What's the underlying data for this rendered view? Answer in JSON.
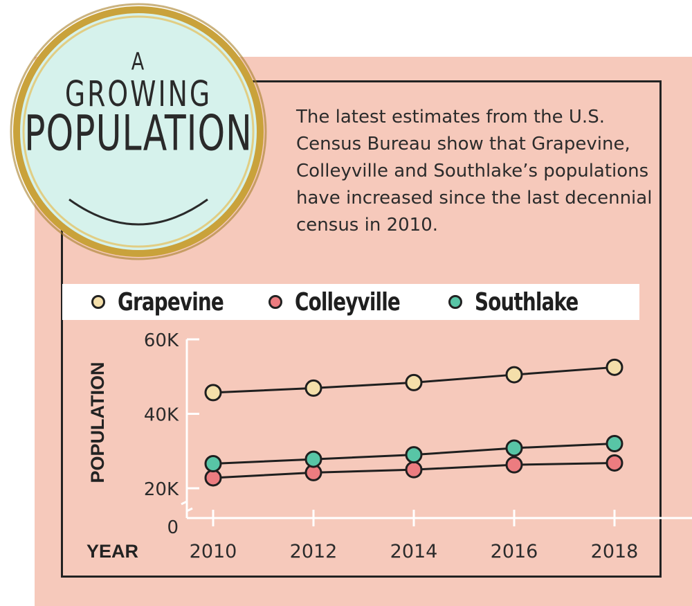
{
  "badge": {
    "line1": "A",
    "line2": "GROWING",
    "line3": "POPULATION"
  },
  "description": "The latest estimates from the U.S. Census Bureau show that Grapevine, Colleyville and Southlake’s populations have increased since the last decennial census in 2010.",
  "colors": {
    "panel": "#f6c9bb",
    "badge_fill": "#d6f2ec",
    "gold": "#c9a23b",
    "grapevine": "#f4dfaa",
    "colleyville": "#ec7c80",
    "southlake": "#58c5a6"
  },
  "chart_data": {
    "type": "line",
    "x": [
      2010,
      2012,
      2014,
      2016,
      2018
    ],
    "series": [
      {
        "name": "Grapevine",
        "values": [
          45700,
          46900,
          48400,
          50500,
          52500
        ]
      },
      {
        "name": "Colleyville",
        "values": [
          22800,
          24200,
          25000,
          26300,
          26800
        ]
      },
      {
        "name": "Southlake",
        "values": [
          26600,
          27800,
          29000,
          30800,
          32000
        ]
      }
    ],
    "xlabel": "YEAR",
    "ylabel": "POPULATION",
    "y_ticks": [
      "0",
      "20K",
      "40K",
      "60K"
    ],
    "x_ticks": [
      "2010",
      "2012",
      "2014",
      "2016",
      "2018"
    ],
    "ylim": [
      0,
      60000
    ],
    "axis_break": true,
    "grid": false,
    "legend_position": "top"
  }
}
